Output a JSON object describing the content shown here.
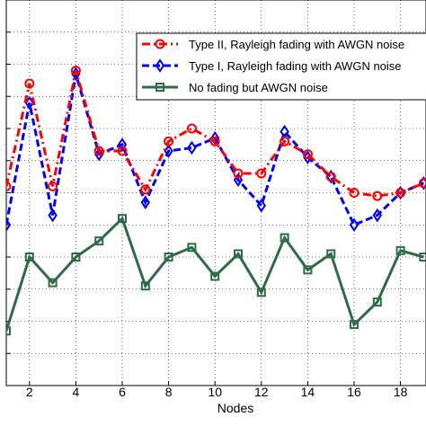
{
  "chart_data": {
    "type": "line",
    "xlabel": "Nodes",
    "ylabel": "",
    "title": "",
    "xlim": [
      1,
      19
    ],
    "ylim": [
      0,
      12
    ],
    "x_ticks": [
      2,
      4,
      6,
      8,
      10,
      12,
      14,
      16,
      18
    ],
    "x": [
      1,
      2,
      3,
      4,
      5,
      6,
      7,
      8,
      9,
      10,
      11,
      12,
      13,
      14,
      15,
      16,
      17,
      18,
      19
    ],
    "grid": true,
    "legend_position": "top-right",
    "series": [
      {
        "name": "Type II, Rayleigh fading with AWGN noise",
        "color": "#ff0000",
        "linestyle": "dash-dot",
        "marker": "circle",
        "values": [
          6.2,
          9.4,
          6.2,
          9.8,
          7.3,
          7.3,
          6.1,
          7.6,
          8.0,
          7.6,
          6.6,
          6.6,
          7.6,
          7.2,
          6.5,
          6.0,
          5.9,
          6.0,
          6.3
        ]
      },
      {
        "name": "Type I, Rayleigh fading with AWGN noise",
        "color": "#0000ff",
        "linestyle": "dashed",
        "marker": "diamond",
        "values": [
          5.0,
          8.8,
          5.3,
          9.7,
          7.2,
          7.5,
          5.7,
          7.3,
          7.4,
          7.7,
          6.4,
          5.6,
          7.9,
          7.1,
          6.5,
          5.0,
          5.3,
          6.0,
          6.3
        ]
      },
      {
        "name": "No fading but AWGN noise",
        "color": "#2e6b47",
        "linestyle": "solid",
        "marker": "square",
        "values": [
          1.7,
          4.0,
          3.2,
          4.0,
          4.5,
          5.2,
          3.1,
          4.0,
          4.3,
          3.4,
          4.1,
          2.9,
          4.6,
          3.6,
          4.1,
          1.9,
          2.6,
          4.2,
          4.0
        ]
      }
    ]
  }
}
